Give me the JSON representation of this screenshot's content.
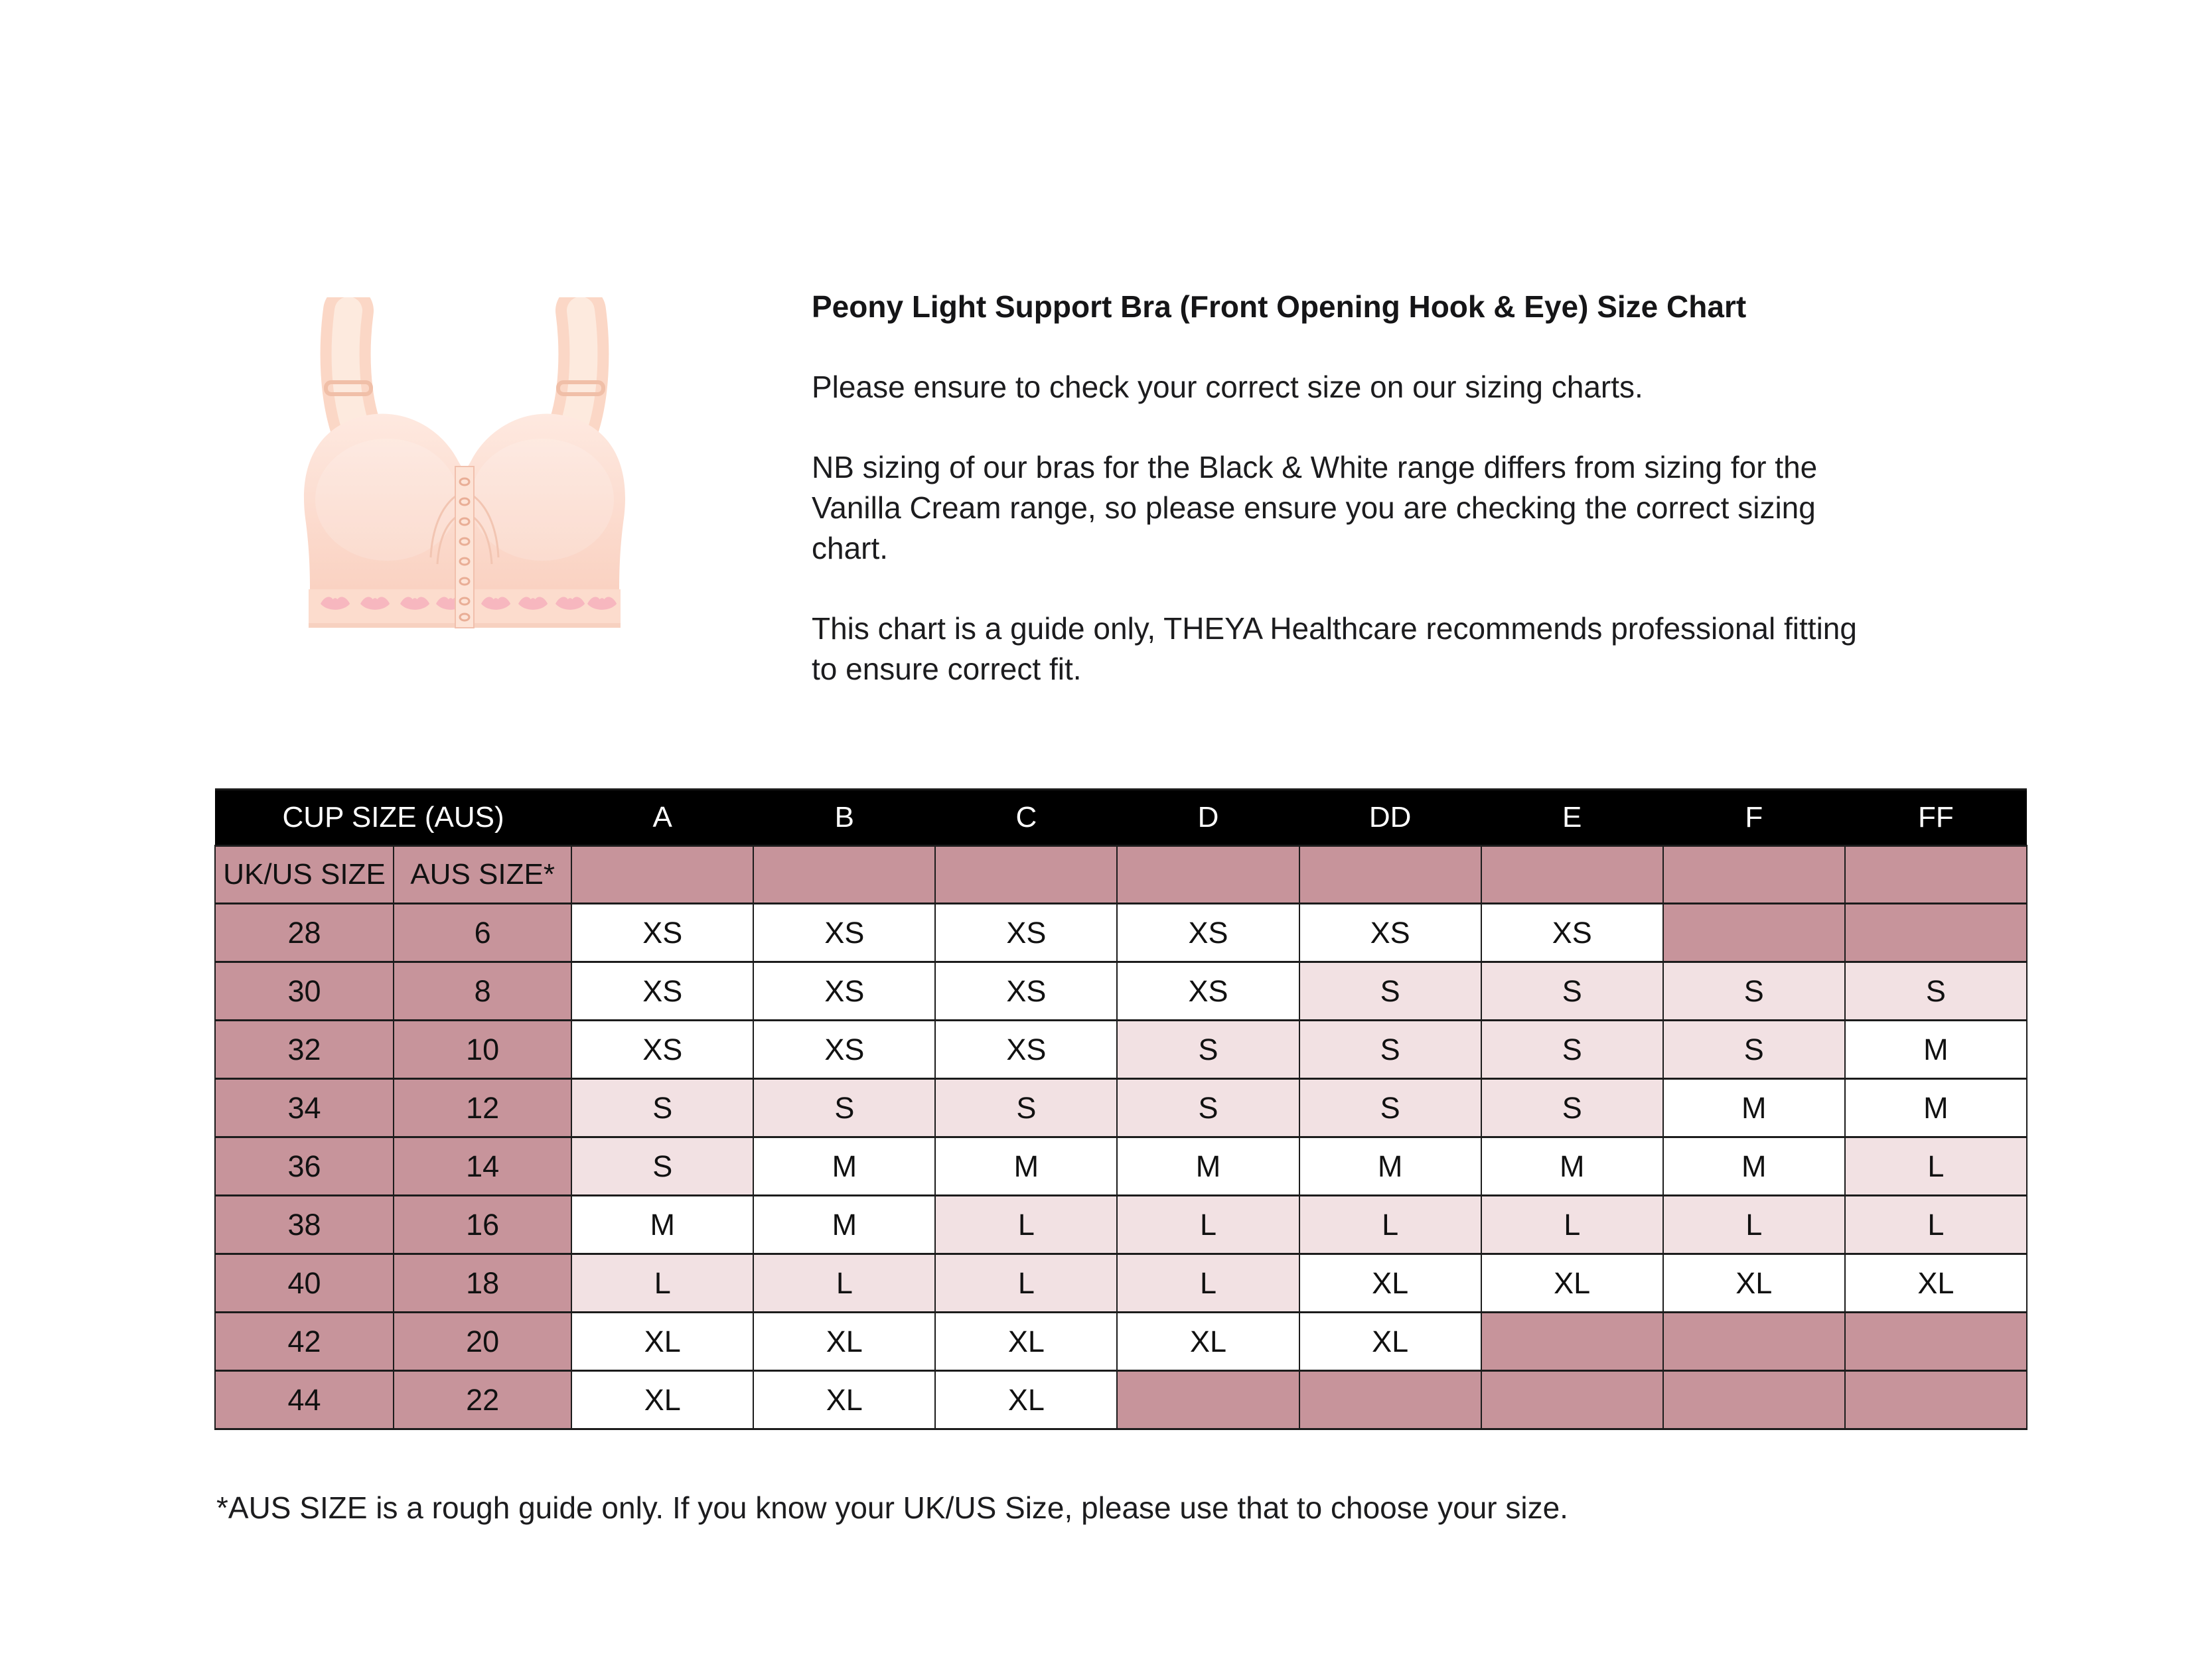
{
  "intro": {
    "title": "Peony Light Support Bra (Front Opening Hook & Eye) Size Chart",
    "paragraphs": [
      {
        "lines": [
          "Please ensure to check your correct size on our sizing charts."
        ]
      },
      {
        "lines": [
          "NB sizing of our bras for the Black & White range differs from sizing for the",
          "Vanilla Cream range, so please ensure you are checking the correct sizing",
          "chart."
        ]
      },
      {
        "lines": [
          "This chart is a guide only, THEYA Healthcare recommends professional fitting",
          "to ensure correct fit."
        ]
      }
    ]
  },
  "footnote": "*AUS SIZE is a rough guide only. If you know your UK/US Size, please use that to choose your size.",
  "colors": {
    "header_bg": "#000000",
    "header_text": "#ffffff",
    "label_mauve": "#c7949b",
    "value_light_pink": "#f2e1e3",
    "value_white": "#ffffff",
    "bra_peach": "#fbd7c6",
    "bra_lip_pink": "#f5aebc"
  },
  "chart_data": {
    "type": "table",
    "title": "Peony Light Support Bra (Front Opening Hook & Eye) Size Chart",
    "corner_label": "CUP SIZE (AUS)",
    "cup_columns": [
      "A",
      "B",
      "C",
      "D",
      "DD",
      "E",
      "F",
      "FF"
    ],
    "subheader": {
      "uk_us": "UK/US SIZE",
      "aus": "AUS SIZE*"
    },
    "rows": [
      {
        "uk_us": "28",
        "aus": "6",
        "sizes": [
          {
            "v": "XS",
            "bg": "w"
          },
          {
            "v": "XS",
            "bg": "w"
          },
          {
            "v": "XS",
            "bg": "w"
          },
          {
            "v": "XS",
            "bg": "w"
          },
          {
            "v": "XS",
            "bg": "w"
          },
          {
            "v": "XS",
            "bg": "w"
          },
          {
            "v": "",
            "bg": "d"
          },
          {
            "v": "",
            "bg": "d"
          }
        ]
      },
      {
        "uk_us": "30",
        "aus": "8",
        "sizes": [
          {
            "v": "XS",
            "bg": "w"
          },
          {
            "v": "XS",
            "bg": "w"
          },
          {
            "v": "XS",
            "bg": "w"
          },
          {
            "v": "XS",
            "bg": "w"
          },
          {
            "v": "S",
            "bg": "p"
          },
          {
            "v": "S",
            "bg": "p"
          },
          {
            "v": "S",
            "bg": "p"
          },
          {
            "v": "S",
            "bg": "p"
          }
        ]
      },
      {
        "uk_us": "32",
        "aus": "10",
        "sizes": [
          {
            "v": "XS",
            "bg": "w"
          },
          {
            "v": "XS",
            "bg": "w"
          },
          {
            "v": "XS",
            "bg": "w"
          },
          {
            "v": "S",
            "bg": "p"
          },
          {
            "v": "S",
            "bg": "p"
          },
          {
            "v": "S",
            "bg": "p"
          },
          {
            "v": "S",
            "bg": "p"
          },
          {
            "v": "M",
            "bg": "w"
          }
        ]
      },
      {
        "uk_us": "34",
        "aus": "12",
        "sizes": [
          {
            "v": "S",
            "bg": "p"
          },
          {
            "v": "S",
            "bg": "p"
          },
          {
            "v": "S",
            "bg": "p"
          },
          {
            "v": "S",
            "bg": "p"
          },
          {
            "v": "S",
            "bg": "p"
          },
          {
            "v": "S",
            "bg": "p"
          },
          {
            "v": "M",
            "bg": "w"
          },
          {
            "v": "M",
            "bg": "w"
          }
        ]
      },
      {
        "uk_us": "36",
        "aus": "14",
        "sizes": [
          {
            "v": "S",
            "bg": "p"
          },
          {
            "v": "M",
            "bg": "w"
          },
          {
            "v": "M",
            "bg": "w"
          },
          {
            "v": "M",
            "bg": "w"
          },
          {
            "v": "M",
            "bg": "w"
          },
          {
            "v": "M",
            "bg": "w"
          },
          {
            "v": "M",
            "bg": "w"
          },
          {
            "v": "L",
            "bg": "p"
          }
        ]
      },
      {
        "uk_us": "38",
        "aus": "16",
        "sizes": [
          {
            "v": "M",
            "bg": "w"
          },
          {
            "v": "M",
            "bg": "w"
          },
          {
            "v": "L",
            "bg": "p"
          },
          {
            "v": "L",
            "bg": "p"
          },
          {
            "v": "L",
            "bg": "p"
          },
          {
            "v": "L",
            "bg": "p"
          },
          {
            "v": "L",
            "bg": "p"
          },
          {
            "v": "L",
            "bg": "p"
          }
        ]
      },
      {
        "uk_us": "40",
        "aus": "18",
        "sizes": [
          {
            "v": "L",
            "bg": "p"
          },
          {
            "v": "L",
            "bg": "p"
          },
          {
            "v": "L",
            "bg": "p"
          },
          {
            "v": "L",
            "bg": "p"
          },
          {
            "v": "XL",
            "bg": "w"
          },
          {
            "v": "XL",
            "bg": "w"
          },
          {
            "v": "XL",
            "bg": "w"
          },
          {
            "v": "XL",
            "bg": "w"
          }
        ]
      },
      {
        "uk_us": "42",
        "aus": "20",
        "sizes": [
          {
            "v": "XL",
            "bg": "w"
          },
          {
            "v": "XL",
            "bg": "w"
          },
          {
            "v": "XL",
            "bg": "w"
          },
          {
            "v": "XL",
            "bg": "w"
          },
          {
            "v": "XL",
            "bg": "w"
          },
          {
            "v": "",
            "bg": "d"
          },
          {
            "v": "",
            "bg": "d"
          },
          {
            "v": "",
            "bg": "d"
          }
        ]
      },
      {
        "uk_us": "44",
        "aus": "22",
        "sizes": [
          {
            "v": "XL",
            "bg": "w"
          },
          {
            "v": "XL",
            "bg": "w"
          },
          {
            "v": "XL",
            "bg": "w"
          },
          {
            "v": "",
            "bg": "d"
          },
          {
            "v": "",
            "bg": "d"
          },
          {
            "v": "",
            "bg": "d"
          },
          {
            "v": "",
            "bg": "d"
          },
          {
            "v": "",
            "bg": "d"
          }
        ]
      }
    ]
  }
}
